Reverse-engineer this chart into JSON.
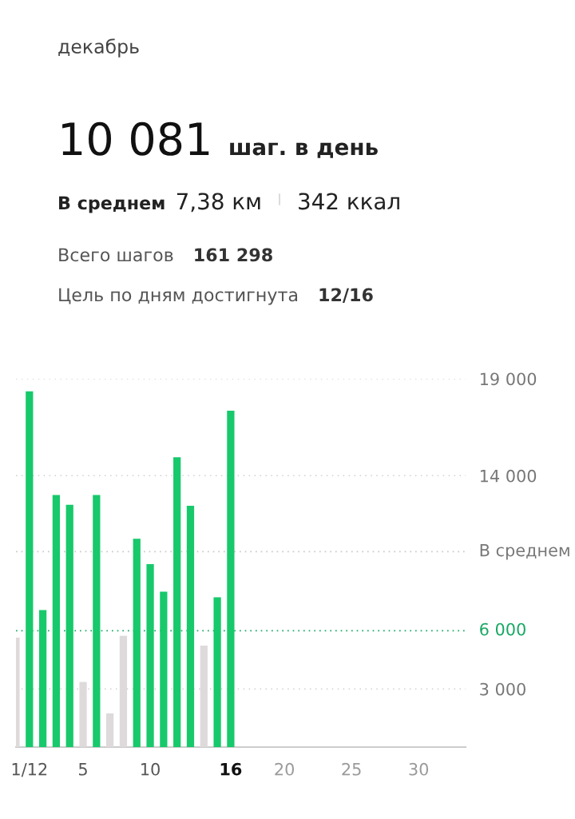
{
  "chart_data": {
    "type": "bar",
    "title": "декабрь",
    "annotations": [
      "10 081",
      "шаг. в день",
      "В среднем",
      "7,38 км",
      "342 ккал",
      "Всего шагов",
      "161 298",
      "Цель по дням достигнута",
      "12/16"
    ],
    "categories": [
      null,
      "1/12",
      null,
      null,
      null,
      "5",
      null,
      null,
      null,
      null,
      "10",
      null,
      null,
      null,
      null,
      null,
      "16",
      null,
      null,
      null,
      "20",
      null,
      null,
      null,
      null,
      "25",
      null,
      null,
      null,
      null,
      "30",
      null,
      null,
      null
    ],
    "values": [
      5650,
      18350,
      7070,
      13000,
      12500,
      3360,
      13000,
      1740,
      5740,
      10750,
      9440,
      8020,
      14950,
      12450,
      5230,
      7730,
      17350,
      null,
      null,
      null,
      null,
      null,
      null,
      null,
      null,
      null,
      null,
      null,
      null,
      null,
      null,
      null,
      null,
      null
    ],
    "colors": [
      "#dedadc",
      "#17c96b",
      "#17c96b",
      "#17c96b",
      "#17c96b",
      "#dedadc",
      "#17c96b",
      "#dedadc",
      "#dedadc",
      "#17c96b",
      "#17c96b",
      "#17c96b",
      "#17c96b",
      "#17c96b",
      "#dedadc",
      "#17c96b",
      "#17c96b",
      null,
      null,
      null,
      null,
      null,
      null,
      null,
      null,
      null,
      null,
      null,
      null,
      null,
      null,
      null,
      null,
      null
    ],
    "ylim": [
      0,
      19000
    ],
    "yticks": [
      {
        "value": 3000,
        "label": "3 000"
      },
      {
        "value": 14000,
        "label": "14 000"
      },
      {
        "value": 19000,
        "label": "19 000"
      }
    ],
    "ref_lines": [
      {
        "axis": "y",
        "value": 6000,
        "label": "6 000",
        "color": "#17a863",
        "line_style": "dotted"
      },
      {
        "axis": "y",
        "value": 10081,
        "label": "В среднем",
        "color": "#c8c8c8",
        "line_style": "dotted"
      }
    ],
    "grid": "y",
    "legend": false
  }
}
